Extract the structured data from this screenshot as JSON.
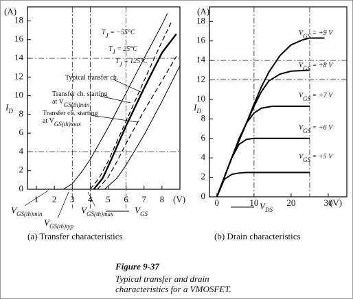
{
  "chart_data": [
    {
      "type": "line",
      "title": "(a) Transfer characteristics",
      "y_label": [
        "I",
        "D"
      ],
      "x_label": [
        "V",
        "GS"
      ],
      "y_unit": "(A)",
      "x_unit": "(V)",
      "xlim": [
        0.5,
        9
      ],
      "ylim": [
        0,
        19.5
      ],
      "xticks": [
        1,
        2,
        3,
        4,
        5,
        6,
        7,
        8
      ],
      "yticks": [
        0,
        2,
        4,
        6,
        8,
        10,
        12,
        14,
        16,
        18
      ],
      "guide_x": [
        3,
        4,
        6
      ],
      "guide_y": [
        4,
        14
      ],
      "series": [
        {
          "label": [
            "T",
            "J",
            " = −55°C"
          ],
          "color": "#000",
          "dash": true,
          "width": 1.2,
          "x": [
            4.0,
            4.5,
            5,
            6,
            7,
            8,
            8.5
          ],
          "values": [
            0,
            1.2,
            3,
            7.3,
            11.6,
            15.8,
            17.8
          ]
        },
        {
          "label": [
            "T",
            "J",
            " = 25°C"
          ],
          "color": "#000",
          "dash": false,
          "width": 2.4,
          "x": [
            4.2,
            4.7,
            5.2,
            6,
            7,
            8,
            8.8
          ],
          "values": [
            0,
            1.2,
            3.3,
            6.8,
            10.8,
            14.6,
            16.6
          ]
        },
        {
          "label": [
            "T",
            "J",
            " = 125°C"
          ],
          "color": "#000",
          "dash": true,
          "width": 1.2,
          "x": [
            4.4,
            5,
            5.5,
            6,
            7,
            8,
            8.8
          ],
          "values": [
            0,
            1.3,
            3,
            4.9,
            8.4,
            11.6,
            14.2
          ]
        },
        {
          "color": "#000",
          "dash": false,
          "width": 1,
          "x": [
            2.5,
            3,
            3.5,
            4,
            5,
            6,
            7,
            8,
            8.3
          ],
          "values": [
            0,
            0.6,
            1.8,
            3.2,
            6.6,
            10.3,
            14,
            17.6,
            18.8
          ]
        },
        {
          "color": "#000",
          "dash": false,
          "width": 1,
          "x": [
            4.8,
            5.5,
            6,
            7,
            8,
            9
          ],
          "values": [
            0,
            1.2,
            2.6,
            5.8,
            9.4,
            13.2
          ]
        }
      ],
      "annotations": [
        {
          "lines": [
            [
              "Typical transfer ch."
            ]
          ]
        },
        {
          "lines": [
            [
              "Transfer ch. starting"
            ],
            [
              "at V",
              "GS(th)min"
            ]
          ]
        },
        {
          "lines": [
            [
              "Transfer ch. starting"
            ],
            [
              "at V",
              "GS(th)max"
            ]
          ]
        },
        {
          "lines": [
            [
              "V",
              "GS(th)min"
            ]
          ]
        },
        {
          "lines": [
            [
              "V",
              "GS(th)typ"
            ]
          ]
        },
        {
          "lines": [
            [
              "V",
              "GS(th)max"
            ]
          ]
        }
      ]
    },
    {
      "type": "line",
      "title": "(b) Drain characteristics",
      "y_label": [
        "I",
        "D"
      ],
      "x_label": [
        "V",
        "DS"
      ],
      "y_unit": "(A)",
      "x_unit": "(V)",
      "xlim": [
        -2,
        35
      ],
      "ylim": [
        0,
        19.5
      ],
      "xticks": [
        0,
        10,
        20,
        30
      ],
      "yticks": [
        0,
        2,
        4,
        6,
        8,
        10,
        12,
        14,
        16,
        18
      ],
      "guide_x": [
        10,
        25
      ],
      "guide_y": [
        12,
        14
      ],
      "series": [
        {
          "label": [
            "V",
            "GS",
            " = +5 V"
          ],
          "color": "#000",
          "dash": false,
          "width": 2,
          "x": [
            0,
            2,
            4,
            6,
            8,
            10,
            15,
            25
          ],
          "values": [
            0,
            1.8,
            2.3,
            2.45,
            2.5,
            2.5,
            2.5,
            2.5
          ]
        },
        {
          "label": [
            "V",
            "GS",
            " = +6 V"
          ],
          "color": "#000",
          "dash": false,
          "width": 2,
          "x": [
            0,
            2,
            4,
            6,
            8,
            10,
            25
          ],
          "values": [
            0,
            2,
            4,
            5.4,
            5.9,
            6,
            6
          ]
        },
        {
          "label": [
            "V",
            "GS",
            " = +7 V"
          ],
          "color": "#000",
          "dash": false,
          "width": 2,
          "x": [
            0,
            2,
            4,
            6,
            8,
            10,
            12,
            15,
            25
          ],
          "values": [
            0,
            2,
            4,
            6,
            7.6,
            8.6,
            9.1,
            9.3,
            9.3
          ]
        },
        {
          "label": [
            "V",
            "GS",
            " = +8 V"
          ],
          "color": "#000",
          "dash": false,
          "width": 2,
          "x": [
            0,
            4,
            8,
            10,
            12,
            14,
            17,
            20,
            25
          ],
          "values": [
            0,
            4,
            7.6,
            9.3,
            10.8,
            11.9,
            12.6,
            12.9,
            13
          ]
        },
        {
          "label": [
            "V",
            "GS",
            " = +9 V"
          ],
          "color": "#000",
          "dash": false,
          "width": 2,
          "x": [
            0,
            4,
            8,
            10,
            12,
            14,
            17,
            20,
            23,
            25,
            29
          ],
          "values": [
            0,
            4,
            7.6,
            9.5,
            11.3,
            12.8,
            14.5,
            15.6,
            16.1,
            16.3,
            16.3
          ]
        }
      ]
    }
  ],
  "figure": {
    "label": "Figure 9-37",
    "caption": [
      "Typical transfer and drain",
      "characteristics for a VMOSFET."
    ]
  }
}
